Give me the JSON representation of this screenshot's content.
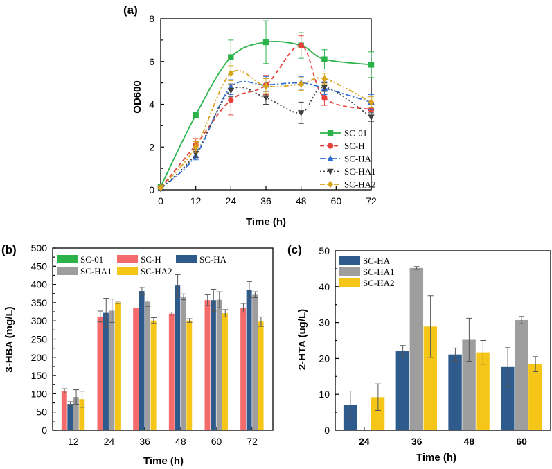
{
  "chart_data": [
    {
      "type": "line",
      "panel_label": "(a)",
      "xlabel": "Time (h)",
      "ylabel": "OD600",
      "xlim": [
        0,
        72
      ],
      "ylim": [
        0,
        8
      ],
      "xticks": [
        "0",
        "12",
        "24",
        "36",
        "48",
        "60",
        "72"
      ],
      "yticks": [
        "0",
        "2",
        "4",
        "6",
        "8"
      ],
      "x": [
        0,
        12,
        24,
        36,
        48,
        56,
        72
      ],
      "legend_position": "bottom-right",
      "series": [
        {
          "name": "SC-01",
          "color": "#2bb34a",
          "marker": "square",
          "dash": "solid",
          "values": [
            0.15,
            3.5,
            6.2,
            6.9,
            6.75,
            6.1,
            5.85
          ],
          "errors": [
            0.05,
            0.12,
            0.8,
            1.0,
            0.6,
            0.45,
            0.6
          ]
        },
        {
          "name": "SC-H",
          "color": "#e8403a",
          "marker": "circle",
          "dash": "dash",
          "values": [
            0.1,
            2.1,
            4.2,
            4.9,
            6.75,
            4.3,
            3.75
          ],
          "errors": [
            0.05,
            0.3,
            0.7,
            0.45,
            0.45,
            0.35,
            0.3
          ]
        },
        {
          "name": "SC-HA",
          "color": "#2f6fd3",
          "marker": "triangle",
          "dash": "dashdot",
          "values": [
            0.05,
            1.6,
            4.8,
            4.9,
            5.0,
            4.75,
            4.1
          ],
          "errors": [
            0.05,
            0.2,
            0.35,
            0.4,
            0.3,
            0.3,
            0.35
          ]
        },
        {
          "name": "SC-HA1",
          "color": "#404040",
          "marker": "triangle-down",
          "dash": "dot",
          "values": [
            0.05,
            1.7,
            4.65,
            4.3,
            3.6,
            4.8,
            3.4
          ],
          "errors": [
            0.05,
            0.2,
            0.3,
            0.3,
            0.5,
            0.2,
            0.2
          ]
        },
        {
          "name": "SC-HA2",
          "color": "#d9a21b",
          "marker": "diamond",
          "dash": "dashdotdot",
          "values": [
            0.1,
            2.0,
            5.45,
            4.85,
            4.95,
            5.2,
            4.1
          ],
          "errors": [
            0.05,
            0.25,
            0.35,
            0.35,
            0.3,
            0.25,
            0.25
          ]
        }
      ]
    },
    {
      "type": "bar",
      "panel_label": "(b)",
      "xlabel": "Time (h)",
      "ylabel": "3-HBA (mg/L)",
      "ylim": [
        0,
        500
      ],
      "yticks": [
        "0",
        "50",
        "100",
        "150",
        "200",
        "250",
        "300",
        "350",
        "400",
        "450",
        "500"
      ],
      "categories": [
        "12",
        "24",
        "36",
        "48",
        "60",
        "72"
      ],
      "legend_position": "top",
      "legend_entries": [
        {
          "name": "SC-01",
          "color": "#2bb34a"
        },
        {
          "name": "SC-H",
          "color": "#f46b6b"
        },
        {
          "name": "SC-HA",
          "color": "#2e5a8c"
        },
        {
          "name": "SC-HA1",
          "color": "#9e9e9e"
        },
        {
          "name": "SC-HA2",
          "color": "#f5c518"
        }
      ],
      "series": [
        {
          "name": "SC-H",
          "color": "#f46b6b",
          "values": [
            108,
            312,
            336,
            320,
            357,
            336
          ],
          "errors": [
            6,
            15,
            0,
            4,
            15,
            12
          ]
        },
        {
          "name": "SC-HA",
          "color": "#2e5a8c",
          "values": [
            72,
            322,
            382,
            397,
            357,
            386
          ],
          "errors": [
            6,
            40,
            10,
            30,
            30,
            22
          ]
        },
        {
          "name": "SC-HA1",
          "color": "#9e9e9e",
          "values": [
            91,
            328,
            353,
            366,
            358,
            372
          ],
          "errors": [
            20,
            32,
            13,
            8,
            22,
            8
          ]
        },
        {
          "name": "SC-HA2",
          "color": "#f5c518",
          "values": [
            85,
            351,
            301,
            301,
            321,
            298
          ],
          "errors": [
            22,
            3,
            8,
            5,
            10,
            13
          ]
        }
      ]
    },
    {
      "type": "bar",
      "panel_label": "(c)",
      "xlabel": "Time (h)",
      "ylabel": "2-HTA (ug/L)",
      "ylim": [
        0,
        50
      ],
      "yticks": [
        "0",
        "10",
        "20",
        "30",
        "40",
        "50"
      ],
      "categories": [
        "24",
        "36",
        "48",
        "60"
      ],
      "legend_position": "top-left",
      "series": [
        {
          "name": "SC-HA",
          "color": "#2e5a8c",
          "values": [
            7.1,
            22.0,
            21.1,
            17.6
          ],
          "errors": [
            3.8,
            1.6,
            1.8,
            5.4
          ]
        },
        {
          "name": "SC-HA1",
          "color": "#9e9e9e",
          "values": [
            0,
            45.2,
            25.2,
            30.7
          ],
          "errors": [
            0,
            0.4,
            6.0,
            1.0
          ]
        },
        {
          "name": "SC-HA2",
          "color": "#f5c518",
          "values": [
            9.2,
            28.9,
            21.7,
            18.4
          ],
          "errors": [
            3.7,
            8.6,
            3.3,
            2.1
          ]
        }
      ]
    }
  ]
}
